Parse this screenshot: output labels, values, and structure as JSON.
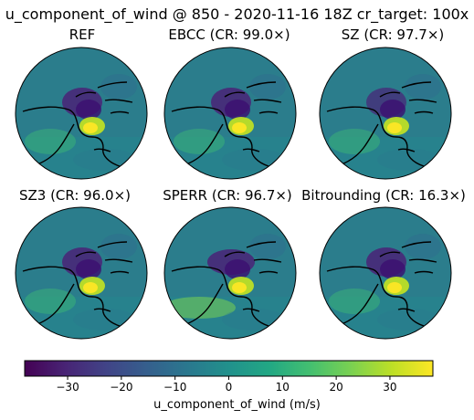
{
  "suptitle": "u_component_of_wind @ 850 - 2020-11-16 18Z cr_target: 100x",
  "panels": [
    {
      "title": "REF"
    },
    {
      "title": "EBCC (CR: 99.0×)"
    },
    {
      "title": "SZ (CR: 97.7×)"
    },
    {
      "title": "SZ3 (CR: 96.0×)"
    },
    {
      "title": "SPERR (CR: 96.7×)"
    },
    {
      "title": "Bitrounding (CR: 16.3×)"
    }
  ],
  "chart_data": {
    "type": "heatmap",
    "colormap": "viridis",
    "vmin": -38,
    "vmax": 38,
    "colorbar": {
      "label": "u_component_of_wind (m/s)",
      "ticks": [
        -30,
        -20,
        -10,
        0,
        10,
        20,
        30
      ],
      "tick_labels": [
        "−30",
        "−20",
        "−10",
        "0",
        "10",
        "20",
        "30"
      ]
    }
  }
}
